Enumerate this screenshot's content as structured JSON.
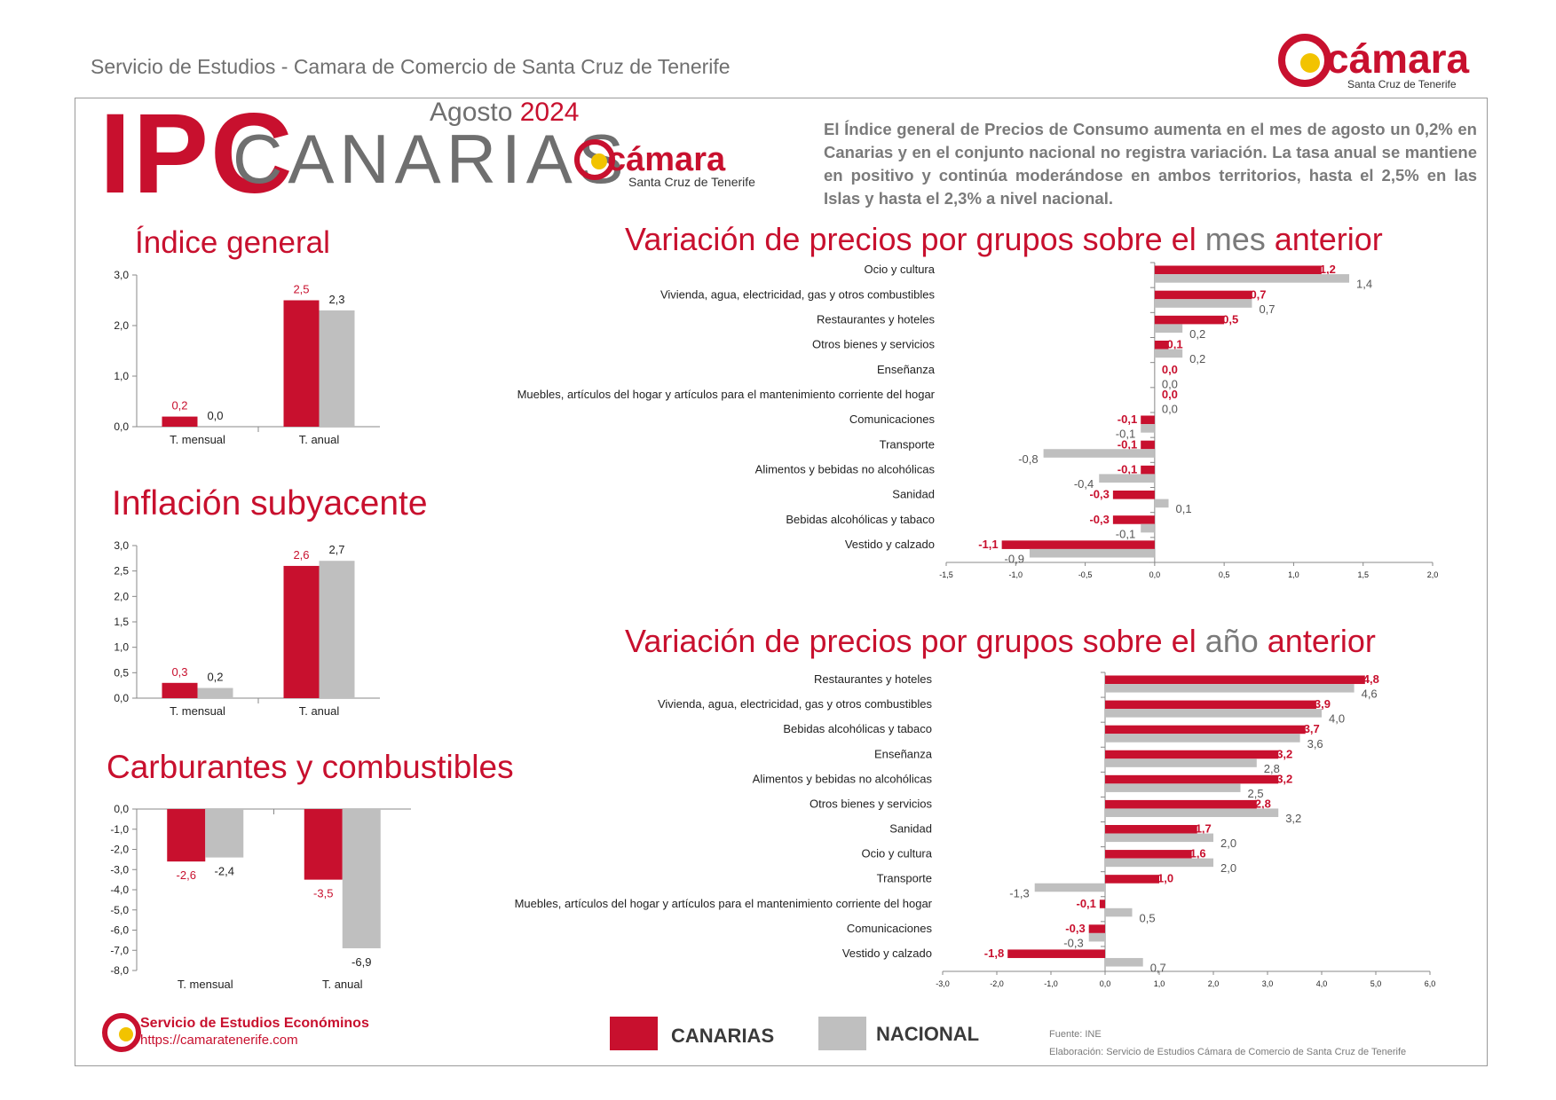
{
  "header": {
    "service_line": "Servicio de Estudios - Camara de Comercio de Santa Cruz de Tenerife",
    "ipc": "IPC",
    "canarias": "CANARIAS",
    "month": "Agosto",
    "year": "2024",
    "logo_name": "cámara",
    "logo_sub": "Santa Cruz de Tenerife"
  },
  "summary": "El Índice general de Precios de Consumo aumenta en el mes de agosto un 0,2% en Canarias y en el conjunto nacional no registra variación. La tasa anual se mantiene en positivo y continúa moderándose en ambos territorios, hasta el 2,5% en las Islas y hasta el 2,3% a nivel nacional.",
  "titles": {
    "general": "Índice general",
    "subyacente": "Inflación subyacente",
    "carburantes": "Carburantes y combustibles",
    "monthly_a": "Variación de precios por grupos sobre el ",
    "monthly_b": "mes",
    "monthly_c": " anterior",
    "annual_a": "Variación de precios por grupos sobre el ",
    "annual_b": "año",
    "annual_c": " anterior"
  },
  "colors": {
    "canarias": "#c8102e",
    "nacional": "#bfbfbf",
    "accent_gray": "#7a7a7a"
  },
  "legend": {
    "canarias": "CANARIAS",
    "nacional": "NACIONAL"
  },
  "footer": {
    "service": "Servicio de Estudios Económinos",
    "url": "https://camaratenerife.com",
    "source": "Fuente: INE",
    "elaboration": "Elaboración: Servicio de Estudios Cámara de Comercio de Santa Cruz de Tenerife"
  },
  "chart_data": [
    {
      "id": "general",
      "type": "bar",
      "title": "Índice general",
      "categories": [
        "T. mensual",
        "T. anual"
      ],
      "series": [
        {
          "name": "CANARIAS",
          "values": [
            0.2,
            2.5
          ]
        },
        {
          "name": "NACIONAL",
          "values": [
            0.0,
            2.3
          ]
        }
      ],
      "labels": [
        [
          "0,2",
          "2,5"
        ],
        [
          "0,0",
          "2,3"
        ]
      ],
      "ticks": [
        0,
        1,
        2,
        3
      ],
      "tick_labels": [
        "0,0",
        "1,0",
        "2,0",
        "3,0"
      ],
      "ylim": [
        0,
        3
      ]
    },
    {
      "id": "subyacente",
      "type": "bar",
      "title": "Inflación subyacente",
      "categories": [
        "T. mensual",
        "T. anual"
      ],
      "series": [
        {
          "name": "CANARIAS",
          "values": [
            0.3,
            2.6
          ]
        },
        {
          "name": "NACIONAL",
          "values": [
            0.2,
            2.7
          ]
        }
      ],
      "labels": [
        [
          "0,3",
          "2,6"
        ],
        [
          "0,2",
          "2,7"
        ]
      ],
      "ticks": [
        0,
        0.5,
        1,
        1.5,
        2,
        2.5,
        3
      ],
      "tick_labels": [
        "0,0",
        "0,5",
        "1,0",
        "1,5",
        "2,0",
        "2,5",
        "3,0"
      ],
      "ylim": [
        0,
        3
      ]
    },
    {
      "id": "carburantes",
      "type": "bar",
      "title": "Carburantes y combustibles",
      "categories": [
        "T. mensual",
        "T. anual"
      ],
      "series": [
        {
          "name": "CANARIAS",
          "values": [
            -2.6,
            -3.5
          ]
        },
        {
          "name": "NACIONAL",
          "values": [
            -2.4,
            -6.9
          ]
        }
      ],
      "labels": [
        [
          "-2,6",
          "-3,5"
        ],
        [
          "-2,4",
          "-6,9"
        ]
      ],
      "ticks": [
        0,
        -1,
        -2,
        -3,
        -4,
        -5,
        -6,
        -7,
        -8
      ],
      "tick_labels": [
        "0,0",
        "-1,0",
        "-2,0",
        "-3,0",
        "-4,0",
        "-5,0",
        "-6,0",
        "-7,0",
        "-8,0"
      ],
      "ylim": [
        -8,
        0
      ]
    },
    {
      "id": "monthly",
      "type": "bar",
      "orientation": "horizontal",
      "title": "Variación de precios por grupos sobre el mes anterior",
      "categories": [
        "Ocio y cultura",
        "Vivienda, agua, electricidad, gas y otros combustibles",
        "Restaurantes y hoteles",
        "Otros bienes y servicios",
        "Enseñanza",
        "Muebles, artículos del hogar y artículos para el mantenimiento corriente del hogar",
        "Comunicaciones",
        "Transporte",
        "Alimentos y bebidas no alcohólicas",
        "Sanidad",
        "Bebidas alcohólicas y tabaco",
        "Vestido y calzado"
      ],
      "series": [
        {
          "name": "CANARIAS",
          "values": [
            1.2,
            0.7,
            0.5,
            0.1,
            0.0,
            0.0,
            -0.1,
            -0.1,
            -0.1,
            -0.3,
            -0.3,
            -1.1
          ]
        },
        {
          "name": "NACIONAL",
          "values": [
            1.4,
            0.7,
            0.2,
            0.2,
            0.0,
            0.0,
            -0.1,
            -0.8,
            -0.4,
            0.1,
            -0.1,
            -0.9
          ]
        }
      ],
      "labels": [
        [
          "1,2",
          "0,7",
          "0,5",
          "0,1",
          "0,0",
          "0,0",
          "-0,1",
          "-0,1",
          "-0,1",
          "-0,3",
          "-0,3",
          "-1,1"
        ],
        [
          "1,4",
          "0,7",
          "0,2",
          "0,2",
          "0,0",
          "0,0",
          "-0,1",
          "-0,8",
          "-0,4",
          "0,1",
          "-0,1",
          "-0,9"
        ]
      ],
      "ticks": [
        -1.5,
        -1,
        -0.5,
        0,
        0.5,
        1,
        1.5,
        2
      ],
      "tick_labels": [
        "-1,5",
        "-1,0",
        "-0,5",
        "0,0",
        "0,5",
        "1,0",
        "1,5",
        "2,0"
      ],
      "xlim": [
        -1.5,
        2
      ]
    },
    {
      "id": "annual",
      "type": "bar",
      "orientation": "horizontal",
      "title": "Variación de precios por grupos sobre el año anterior",
      "categories": [
        "Restaurantes y hoteles",
        "Vivienda, agua, electricidad, gas y otros combustibles",
        "Bebidas alcohólicas y tabaco",
        "Enseñanza",
        "Alimentos y bebidas no alcohólicas",
        "Otros bienes y servicios",
        "Sanidad",
        "Ocio y cultura",
        "Transporte",
        "Muebles, artículos del hogar y artículos para el mantenimiento corriente del hogar",
        "Comunicaciones",
        "Vestido y calzado"
      ],
      "series": [
        {
          "name": "CANARIAS",
          "values": [
            4.8,
            3.9,
            3.7,
            3.2,
            3.2,
            2.8,
            1.7,
            1.6,
            1.0,
            -0.1,
            -0.3,
            -1.8
          ]
        },
        {
          "name": "NACIONAL",
          "values": [
            4.6,
            4.0,
            3.6,
            2.8,
            2.5,
            3.2,
            2.0,
            2.0,
            -1.3,
            0.5,
            -0.3,
            0.7
          ]
        }
      ],
      "labels": [
        [
          "4,8",
          "3,9",
          "3,7",
          "3,2",
          "3,2",
          "2,8",
          "1,7",
          "1,6",
          "1,0",
          "-0,1",
          "-0,3",
          "-1,8"
        ],
        [
          "4,6",
          "4,0",
          "3,6",
          "2,8",
          "2,5",
          "3,2",
          "2,0",
          "2,0",
          "-1,3",
          "0,5",
          "-0,3",
          "0,7"
        ]
      ],
      "ticks": [
        -3,
        -2,
        -1,
        0,
        1,
        2,
        3,
        4,
        5,
        6
      ],
      "tick_labels": [
        "-3,0",
        "-2,0",
        "-1,0",
        "0,0",
        "1,0",
        "2,0",
        "3,0",
        "4,0",
        "5,0",
        "6,0"
      ],
      "xlim": [
        -3,
        6
      ]
    }
  ]
}
